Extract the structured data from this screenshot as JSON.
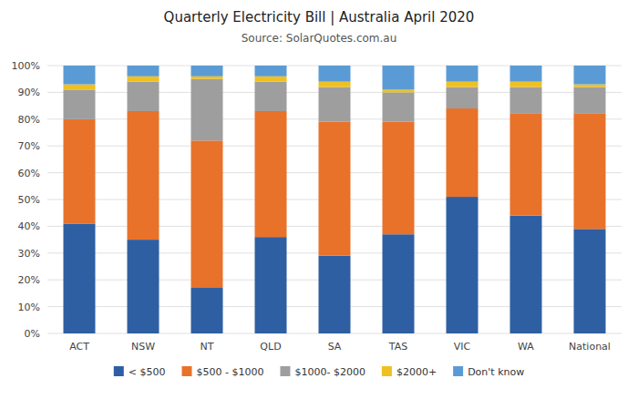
{
  "chart_data": {
    "type": "bar",
    "stacked": true,
    "title": "Quarterly Electricity Bill | Australia April 2020",
    "subtitle": "Source: SolarQuotes.com.au",
    "categories": [
      "ACT",
      "NSW",
      "NT",
      "QLD",
      "SA",
      "TAS",
      "VIC",
      "WA",
      "National"
    ],
    "series": [
      {
        "name": "< $500",
        "color": "#2E5FA3",
        "values": [
          41,
          35,
          17,
          36,
          29,
          37,
          51,
          44,
          39
        ]
      },
      {
        "name": "$500 - $1000",
        "color": "#E8722A",
        "values": [
          39,
          48,
          55,
          47,
          50,
          42,
          33,
          38,
          43
        ]
      },
      {
        "name": "$1000- $2000",
        "color": "#9E9E9E",
        "values": [
          11,
          11,
          23,
          11,
          13,
          11,
          8,
          10,
          10
        ]
      },
      {
        "name": "$2000+",
        "color": "#F0C020",
        "values": [
          2,
          2,
          1,
          2,
          2,
          1,
          2,
          2,
          1
        ]
      },
      {
        "name": "Don't know",
        "color": "#5B9BD5",
        "values": [
          7,
          4,
          4,
          4,
          6,
          9,
          6,
          6,
          7
        ]
      }
    ],
    "ylim": [
      0,
      100
    ],
    "yticks": [
      {
        "value": 0,
        "label": "0%"
      },
      {
        "value": 10,
        "label": "10%"
      },
      {
        "value": 20,
        "label": "20%"
      },
      {
        "value": 30,
        "label": "30%"
      },
      {
        "value": 40,
        "label": "40%"
      },
      {
        "value": 50,
        "label": "50%"
      },
      {
        "value": 60,
        "label": "60%"
      },
      {
        "value": 70,
        "label": "70%"
      },
      {
        "value": 80,
        "label": "80%"
      },
      {
        "value": 90,
        "label": "90%"
      },
      {
        "value": 100,
        "label": "100%"
      }
    ],
    "grid": true,
    "legend": "bottom"
  }
}
